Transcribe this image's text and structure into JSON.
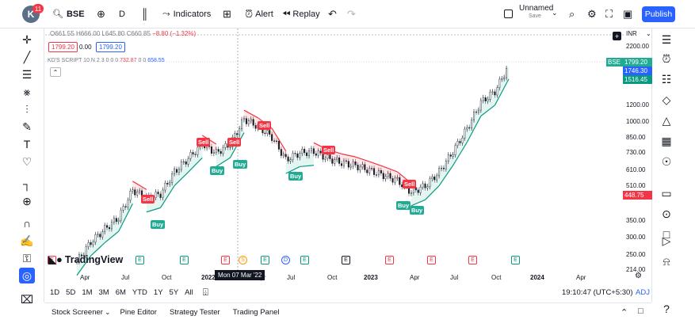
{
  "header": {
    "avatar_letter": "K",
    "notification_count": "11",
    "symbol": "BSE",
    "interval": "D",
    "indicators_label": "Indicators",
    "alert_label": "Alert",
    "replay_label": "Replay",
    "layout_name": "Unnamed",
    "layout_status": "Save",
    "publish_label": "Publish"
  },
  "legend": {
    "open": "O661.55",
    "high": "H666.00",
    "low": "L645.80",
    "close": "C660.85",
    "change": "−8.80 (−1.32%)",
    "bid": "1799.20",
    "spread": "0.00",
    "ask": "1799.20",
    "script_name": "KD'S SCRIPT",
    "script_params": "10 N 2 3",
    "script_zeros_a": "0 0 0",
    "script_val_red": "732.87",
    "script_zeros_b": "0 0",
    "script_val_blue": "658.55",
    "currency": "INR"
  },
  "price_axis": {
    "ticks": [
      "2200.00",
      "1200.00",
      "1000.00",
      "850.00",
      "730.00",
      "610.00",
      "510.00",
      "350.00",
      "300.00",
      "250.00",
      "214.00"
    ],
    "tags": {
      "symbol": "BSE",
      "last": "1799.20",
      "blue": "1746.30",
      "green": "1516.45",
      "red": "448.75"
    }
  },
  "time_axis": {
    "labels": [
      "Apr",
      "Jul",
      "Oct",
      "2022",
      "Apr",
      "Jul",
      "Oct",
      "2023",
      "Apr",
      "Jul",
      "Oct",
      "2024",
      "Apr"
    ],
    "cursor_date": "Mon 07 Mar '22"
  },
  "signals": {
    "sell": "Sell",
    "buy": "Buy"
  },
  "events": [
    "E",
    "E",
    "E",
    "E",
    "S",
    "E",
    "D",
    "E",
    "E",
    "E",
    "E",
    "E",
    "E"
  ],
  "logo_text": "TradingView",
  "ranges": [
    "1D",
    "5D",
    "1M",
    "3M",
    "6M",
    "YTD",
    "1Y",
    "5Y",
    "All"
  ],
  "clock": "19:10:47 (UTC+5:30)",
  "adj_label": "ADJ",
  "bottom_tabs": [
    "Stock Screener",
    "Pine Editor",
    "Strategy Tester",
    "Trading Panel"
  ],
  "colors": {
    "accent": "#2962ff",
    "sell": "#f23645",
    "buy": "#22ab94",
    "line_red": "#f23645",
    "line_green": "#089981"
  },
  "chart_data": {
    "type": "line",
    "title": "",
    "xlabel": "",
    "ylabel": "",
    "x": [
      "2021-03",
      "2021-04",
      "2021-05",
      "2021-06",
      "2021-07",
      "2021-08",
      "2021-09",
      "2021-10",
      "2021-11",
      "2021-12",
      "2022-01",
      "2022-02",
      "2022-03",
      "2022-04",
      "2022-05",
      "2022-06",
      "2022-07",
      "2022-08",
      "2022-09",
      "2022-10",
      "2022-11",
      "2022-12",
      "2023-01",
      "2023-02",
      "2023-03",
      "2023-04",
      "2023-05",
      "2023-06",
      "2023-07",
      "2023-08",
      "2023-09",
      "2023-10"
    ],
    "series": [
      {
        "values": [
          210,
          260,
          300,
          340,
          460,
          420,
          440,
          560,
          650,
          760,
          690,
          760,
          1000,
          920,
          820,
          640,
          690,
          700,
          650,
          620,
          600,
          570,
          540,
          510,
          450,
          480,
          560,
          700,
          900,
          1200,
          1350,
          1799
        ]
      }
    ],
    "ylim": [
      200,
      2300
    ],
    "y_scale": "log",
    "grid": false
  }
}
